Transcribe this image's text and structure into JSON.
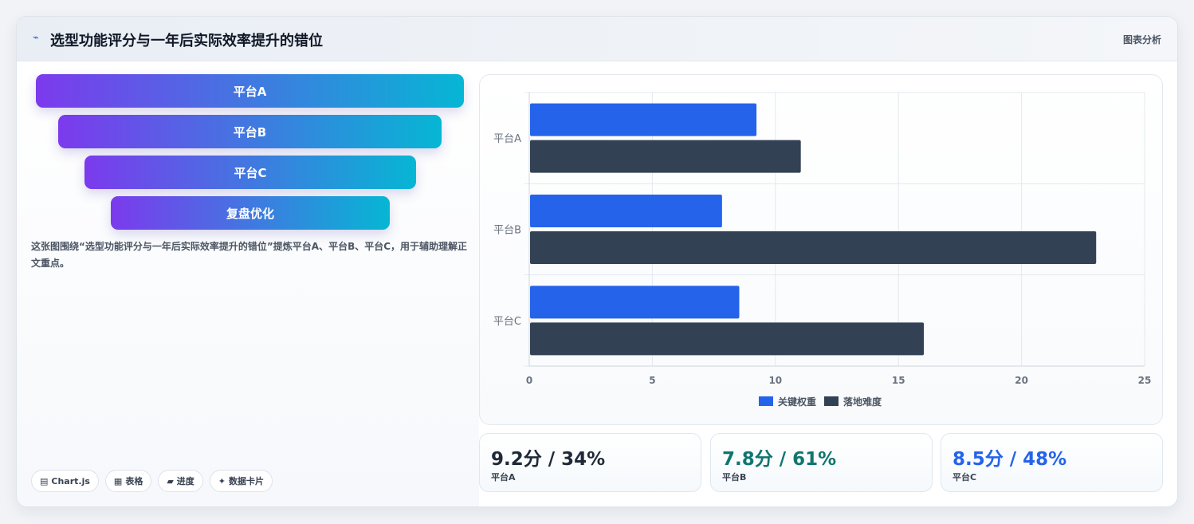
{
  "header": {
    "icon": "line-icon",
    "title": "选型功能评分与一年后实际效率提升的错位",
    "tag": "图表分析"
  },
  "funnel": {
    "items": [
      "平台A",
      "平台B",
      "平台C",
      "复盘优化"
    ]
  },
  "description": "这张图围绕“选型功能评分与一年后实际效率提升的错位”提炼平台A、平台B、平台C，用于辅助理解正文重点。",
  "chips": [
    {
      "icon": "chart-icon",
      "glyph": "▤",
      "label": "Chart.js"
    },
    {
      "icon": "table-icon",
      "glyph": "▦",
      "label": "表格"
    },
    {
      "icon": "progress-icon",
      "glyph": "▰",
      "label": "进度"
    },
    {
      "icon": "sparkle-icon",
      "glyph": "✦",
      "label": "数据卡片"
    }
  ],
  "chart_data": {
    "type": "bar",
    "orientation": "horizontal",
    "categories": [
      "平台A",
      "平台B",
      "平台C"
    ],
    "series": [
      {
        "name": "关键权重",
        "values": [
          9.2,
          7.8,
          8.5
        ],
        "color": "#2563eb"
      },
      {
        "name": "落地难度",
        "values": [
          11,
          23,
          16
        ],
        "color": "#334155"
      }
    ],
    "xlim": [
      0,
      25
    ],
    "xticks": [
      0,
      5,
      10,
      15,
      20,
      25
    ],
    "grid": true,
    "legend": "bottom"
  },
  "stats": [
    {
      "value": "9.2分 / 34%",
      "label": "平台A",
      "color": "#1f2937"
    },
    {
      "value": "7.8分 / 61%",
      "label": "平台B",
      "color": "#0f766e"
    },
    {
      "value": "8.5分 / 48%",
      "label": "平台C",
      "color": "#2563eb"
    }
  ]
}
